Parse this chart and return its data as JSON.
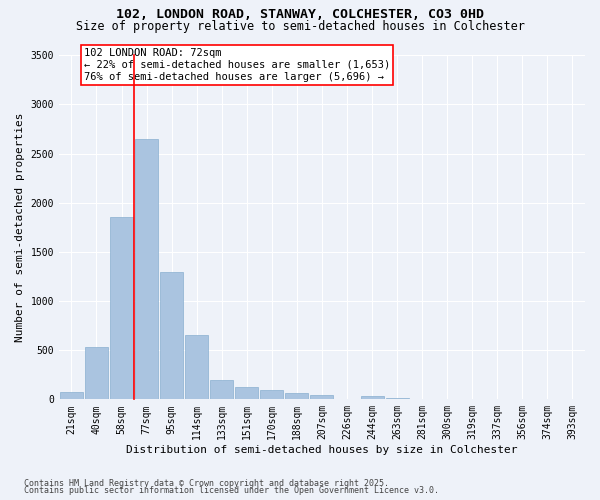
{
  "title_line1": "102, LONDON ROAD, STANWAY, COLCHESTER, CO3 0HD",
  "title_line2": "Size of property relative to semi-detached houses in Colchester",
  "xlabel": "Distribution of semi-detached houses by size in Colchester",
  "ylabel": "Number of semi-detached properties",
  "categories": [
    "21sqm",
    "40sqm",
    "58sqm",
    "77sqm",
    "95sqm",
    "114sqm",
    "133sqm",
    "151sqm",
    "170sqm",
    "188sqm",
    "207sqm",
    "226sqm",
    "244sqm",
    "263sqm",
    "281sqm",
    "300sqm",
    "319sqm",
    "337sqm",
    "356sqm",
    "374sqm",
    "393sqm"
  ],
  "values": [
    70,
    530,
    1850,
    2650,
    1300,
    650,
    200,
    130,
    90,
    60,
    40,
    0,
    30,
    15,
    5,
    3,
    2,
    1,
    1,
    0,
    0
  ],
  "bar_color": "#aac4e0",
  "bar_edge_color": "#8ab0d0",
  "property_label": "102 LONDON ROAD: 72sqm",
  "pct_smaller": 22,
  "pct_larger": 76,
  "count_smaller": "1,653",
  "count_larger": "5,696",
  "vline_bin_index": 3,
  "ylim": [
    0,
    3500
  ],
  "yticks": [
    0,
    500,
    1000,
    1500,
    2000,
    2500,
    3000,
    3500
  ],
  "footnote_line1": "Contains HM Land Registry data © Crown copyright and database right 2025.",
  "footnote_line2": "Contains public sector information licensed under the Open Government Licence v3.0.",
  "bg_color": "#eef2f9",
  "plot_bg_color": "#eef2f9",
  "title_fontsize": 9.5,
  "subtitle_fontsize": 8.5,
  "axis_label_fontsize": 8,
  "tick_fontsize": 7,
  "annotation_fontsize": 7.5,
  "footnote_fontsize": 6
}
